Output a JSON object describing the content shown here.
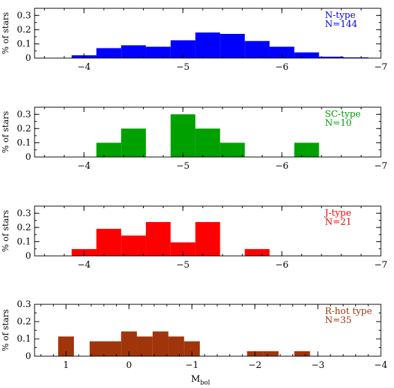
{
  "figure": {
    "xlabel_main": "M",
    "xlabel_sub": "bol"
  },
  "chart_data": [
    {
      "type": "bar",
      "label": "N-type",
      "count_label": "N=144",
      "color": "#0000ff",
      "ylabel": "% of stars",
      "xlim": [
        -3.5,
        -7
      ],
      "ylim": [
        0,
        0.35
      ],
      "xticks": [
        "-4",
        "-5",
        "-6",
        "-7"
      ],
      "xtick_values": [
        -4,
        -5,
        -6,
        -7
      ],
      "yticks": [
        "0",
        "0.1",
        "0.2",
        "0.3"
      ],
      "ytick_values": [
        0,
        0.1,
        0.2,
        0.3
      ],
      "bin_edges": [
        -3.875,
        -4.125,
        -4.375,
        -4.625,
        -4.875,
        -5.125,
        -5.375,
        -5.625,
        -5.875,
        -6.125,
        -6.375,
        -6.625,
        -6.875
      ],
      "values": [
        0.02,
        0.07,
        0.09,
        0.08,
        0.125,
        0.18,
        0.17,
        0.12,
        0.08,
        0.04,
        0.01,
        0.005
      ]
    },
    {
      "type": "bar",
      "label": "SC-type",
      "count_label": "N=10",
      "color": "#00a000",
      "ylabel": "% of stars",
      "xlim": [
        -3.5,
        -7
      ],
      "ylim": [
        0,
        0.35
      ],
      "xticks": [
        "-4",
        "-5",
        "-6",
        "-7"
      ],
      "xtick_values": [
        -4,
        -5,
        -6,
        -7
      ],
      "yticks": [
        "0",
        "0.1",
        "0.2",
        "0.3"
      ],
      "ytick_values": [
        0,
        0.1,
        0.2,
        0.3
      ],
      "bin_edges": [
        -4.125,
        -4.375,
        -4.625,
        -4.875,
        -5.125,
        -5.375,
        -5.625,
        -5.875,
        -6.125,
        -6.375
      ],
      "values": [
        0.1,
        0.2,
        0.0,
        0.3,
        0.2,
        0.1,
        0.0,
        0.0,
        0.1
      ]
    },
    {
      "type": "bar",
      "label": "J-type",
      "count_label": "N=21",
      "color": "#ff0000",
      "ylabel": "% of stars",
      "xlim": [
        -3.5,
        -7
      ],
      "ylim": [
        0,
        0.35
      ],
      "xticks": [
        "-4",
        "-5",
        "-6",
        "-7"
      ],
      "xtick_values": [
        -4,
        -5,
        -6,
        -7
      ],
      "yticks": [
        "0",
        "0.1",
        "0.2",
        "0.3"
      ],
      "ytick_values": [
        0,
        0.1,
        0.2,
        0.3
      ],
      "bin_edges": [
        -3.875,
        -4.125,
        -4.375,
        -4.625,
        -4.875,
        -5.125,
        -5.375,
        -5.625,
        -5.875
      ],
      "values": [
        0.048,
        0.19,
        0.143,
        0.238,
        0.095,
        0.238,
        0.0,
        0.048
      ]
    },
    {
      "type": "bar",
      "label": "R-hot type",
      "count_label": "N=35",
      "color": "#a0350b",
      "ylabel": "% of stars",
      "xlim": [
        1.5,
        -4
      ],
      "ylim": [
        0,
        0.3
      ],
      "xticks": [
        "1",
        "0",
        "-1",
        "-2",
        "-3",
        "-4"
      ],
      "xtick_values": [
        1,
        0,
        -1,
        -2,
        -3,
        -4
      ],
      "yticks": [
        "0",
        "0.1",
        "0.2",
        "0.3"
      ],
      "ytick_values": [
        0,
        0.1,
        0.2,
        0.3
      ],
      "bin_edges": [
        1.125,
        0.875,
        0.625,
        0.375,
        0.125,
        -0.125,
        -0.375,
        -0.625,
        -0.875,
        -1.125,
        -1.375,
        -1.625,
        -1.875,
        -2.125,
        -2.375,
        -2.625,
        -2.875
      ],
      "values": [
        0.114,
        0.0,
        0.086,
        0.086,
        0.143,
        0.114,
        0.143,
        0.114,
        0.086,
        0.0,
        0.0,
        0.0,
        0.029,
        0.029,
        0.0,
        0.029
      ]
    }
  ]
}
